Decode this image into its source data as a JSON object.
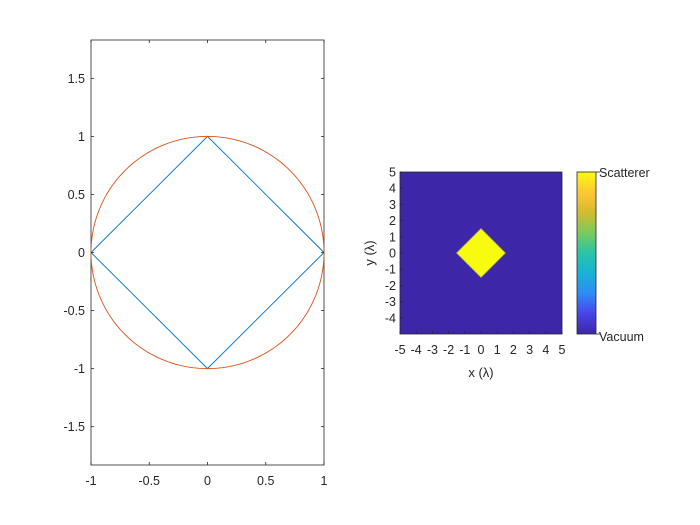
{
  "chart_data": [
    {
      "type": "line",
      "title": "",
      "xlabel": "",
      "ylabel": "",
      "xlim": [
        -1,
        1
      ],
      "ylim": [
        -1.83,
        1.83
      ],
      "xticks": [
        "-1",
        "-0.5",
        "0",
        "0.5",
        "1"
      ],
      "yticks": [
        "-1.5",
        "-1",
        "-0.5",
        "0",
        "0.5",
        "1",
        "1.5"
      ],
      "grid": false,
      "series": [
        {
          "color": "#0072BD",
          "shape": "diamond",
          "x": [
            1,
            0,
            -1,
            0,
            1
          ],
          "y": [
            0,
            1,
            0,
            -1,
            0
          ]
        },
        {
          "color": "#D95319",
          "shape": "circle",
          "center": [
            0,
            0
          ],
          "radius": 1
        }
      ]
    },
    {
      "type": "heatmap",
      "xlabel": "x (λ)",
      "ylabel": "y (λ)",
      "xlim": [
        -5,
        5
      ],
      "ylim": [
        -5,
        5
      ],
      "xticks": [
        "-5",
        "-4",
        "-3",
        "-2",
        "-1",
        "0",
        "1",
        "2",
        "3",
        "4",
        "5"
      ],
      "yticks": [
        "5",
        "4",
        "3",
        "2",
        "1",
        "0",
        "-1",
        "-2",
        "-3",
        "-4"
      ],
      "background_value": "Vacuum",
      "background_color": "#3E26A8",
      "scatterer": {
        "shape": "diamond",
        "center": [
          0,
          0
        ],
        "half_diagonal": 1.5,
        "color": "#F9FB0E"
      },
      "colorbar": {
        "labels": [
          "Scatterer",
          "Vacuum"
        ],
        "colormap": [
          "#3E26A8",
          "#4744E8",
          "#2D8CF5",
          "#19B2D6",
          "#2AC4A9",
          "#78CB5D",
          "#D3BB2F",
          "#FEC735",
          "#F9FB0E"
        ]
      }
    }
  ]
}
